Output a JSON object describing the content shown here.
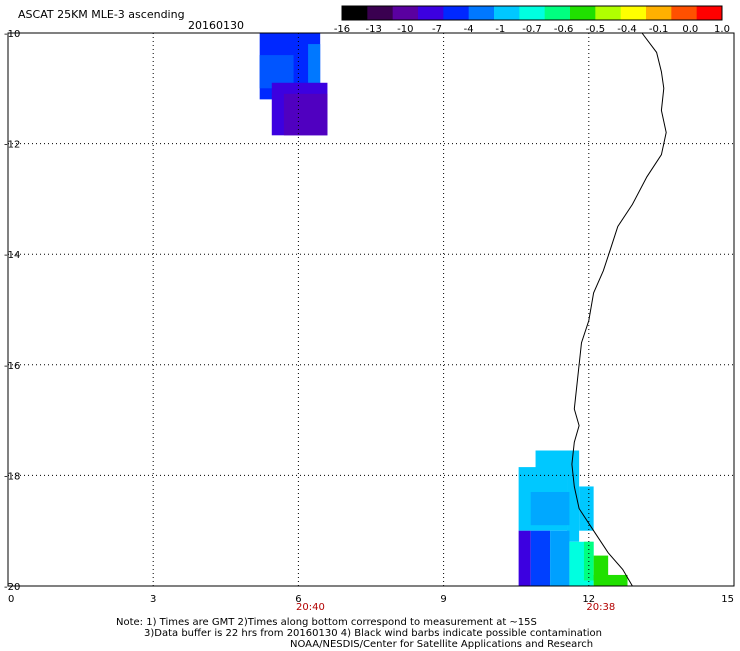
{
  "title": "ASCAT 25KM MLE-3 ascending",
  "date": "20160130",
  "colorbar": {
    "labels": [
      "-16",
      "-13",
      "-10",
      "-7",
      "-4",
      "-1",
      "-0.7",
      "-0.6",
      "-0.5",
      "-0.4",
      "-0.1",
      "0.0",
      "1.0"
    ],
    "colors": [
      "#000000",
      "#3a0050",
      "#5a00a0",
      "#3c00e0",
      "#0028ff",
      "#0078ff",
      "#00c8ff",
      "#00ffe0",
      "#00ff80",
      "#20e000",
      "#b0ff00",
      "#ffff00",
      "#ffb000",
      "#ff5000",
      "#ff0000"
    ]
  },
  "x_axis": {
    "range": [
      0,
      15
    ],
    "ticks": [
      "0",
      "3",
      "6",
      "9",
      "12",
      "15"
    ],
    "time_labels": [
      {
        "x": 6,
        "text": "20:40"
      },
      {
        "x": 12,
        "text": "20:38"
      }
    ]
  },
  "y_axis": {
    "range": [
      -20,
      -10
    ],
    "ticks": [
      "-10",
      "-12",
      "-14",
      "-16",
      "-18",
      "-20"
    ]
  },
  "swaths": [
    {
      "x0": 5.2,
      "x1": 6.45,
      "y0": -11.2,
      "y1": -10.0,
      "color": "#0028ff"
    },
    {
      "x0": 5.2,
      "x1": 5.9,
      "y0": -11.0,
      "y1": -10.4,
      "color": "#0055ff"
    },
    {
      "x0": 6.2,
      "x1": 6.45,
      "y0": -11.2,
      "y1": -10.2,
      "color": "#0078ff"
    },
    {
      "x0": 6.0,
      "x1": 6.5,
      "y0": -10.0,
      "y1": -10.2,
      "color": "#0028ff"
    },
    {
      "x0": 5.45,
      "x1": 6.6,
      "y0": -11.85,
      "y1": -10.9,
      "color": "#3c00e0"
    },
    {
      "x0": 5.7,
      "x1": 6.6,
      "y0": -11.85,
      "y1": -11.1,
      "color": "#5000c0"
    },
    {
      "x0": 10.55,
      "x1": 11.55,
      "y0": -19.0,
      "y1": -17.85,
      "color": "#00c8ff"
    },
    {
      "x0": 10.9,
      "x1": 11.7,
      "y0": -18.0,
      "y1": -17.55,
      "color": "#00c8ff"
    },
    {
      "x0": 11.55,
      "x1": 11.8,
      "y0": -19.2,
      "y1": -17.55,
      "color": "#00c8ff"
    },
    {
      "x0": 11.8,
      "x1": 12.1,
      "y0": -19.0,
      "y1": -18.2,
      "color": "#00c8ff"
    },
    {
      "x0": 10.8,
      "x1": 11.6,
      "y0": -18.9,
      "y1": -18.3,
      "color": "#00a8ff"
    },
    {
      "x0": 10.55,
      "x1": 10.8,
      "y0": -20.0,
      "y1": -19.0,
      "color": "#3c00e0"
    },
    {
      "x0": 10.8,
      "x1": 11.2,
      "y0": -20.0,
      "y1": -19.0,
      "color": "#0040ff"
    },
    {
      "x0": 11.2,
      "x1": 11.6,
      "y0": -20.0,
      "y1": -19.0,
      "color": "#00a0ff"
    },
    {
      "x0": 11.6,
      "x1": 12.1,
      "y0": -20.0,
      "y1": -19.2,
      "color": "#00ffe0"
    },
    {
      "x0": 11.9,
      "x1": 12.1,
      "y0": -19.9,
      "y1": -19.2,
      "color": "#00ff80"
    },
    {
      "x0": 12.1,
      "x1": 12.4,
      "y0": -19.9,
      "y1": -19.45,
      "color": "#20e000"
    },
    {
      "x0": 12.1,
      "x1": 12.8,
      "y0": -20.0,
      "y1": -19.8,
      "color": "#20e000"
    }
  ],
  "coastline": [
    [
      13.1,
      -10.0
    ],
    [
      13.4,
      -10.35
    ],
    [
      13.5,
      -10.7
    ],
    [
      13.55,
      -11.0
    ],
    [
      13.5,
      -11.4
    ],
    [
      13.6,
      -11.8
    ],
    [
      13.5,
      -12.2
    ],
    [
      13.2,
      -12.6
    ],
    [
      12.9,
      -13.1
    ],
    [
      12.6,
      -13.5
    ],
    [
      12.45,
      -13.9
    ],
    [
      12.3,
      -14.3
    ],
    [
      12.1,
      -14.7
    ],
    [
      12.0,
      -15.2
    ],
    [
      11.85,
      -15.6
    ],
    [
      11.8,
      -16.0
    ],
    [
      11.75,
      -16.4
    ],
    [
      11.7,
      -16.8
    ],
    [
      11.8,
      -17.1
    ],
    [
      11.7,
      -17.4
    ],
    [
      11.65,
      -17.8
    ],
    [
      11.7,
      -18.2
    ],
    [
      11.8,
      -18.6
    ],
    [
      12.1,
      -19.0
    ],
    [
      12.4,
      -19.4
    ],
    [
      12.7,
      -19.7
    ],
    [
      12.9,
      -20.0
    ]
  ],
  "notes": {
    "line1": "Note: 1) Times are GMT 2)Times along bottom correspond to measurement at ~15S",
    "line2": "3)Data buffer is 22 hrs from 20160130 4) Black wind barbs indicate possible contamination",
    "line3": "NOAA/NESDIS/Center for Satellite Applications and Research"
  }
}
